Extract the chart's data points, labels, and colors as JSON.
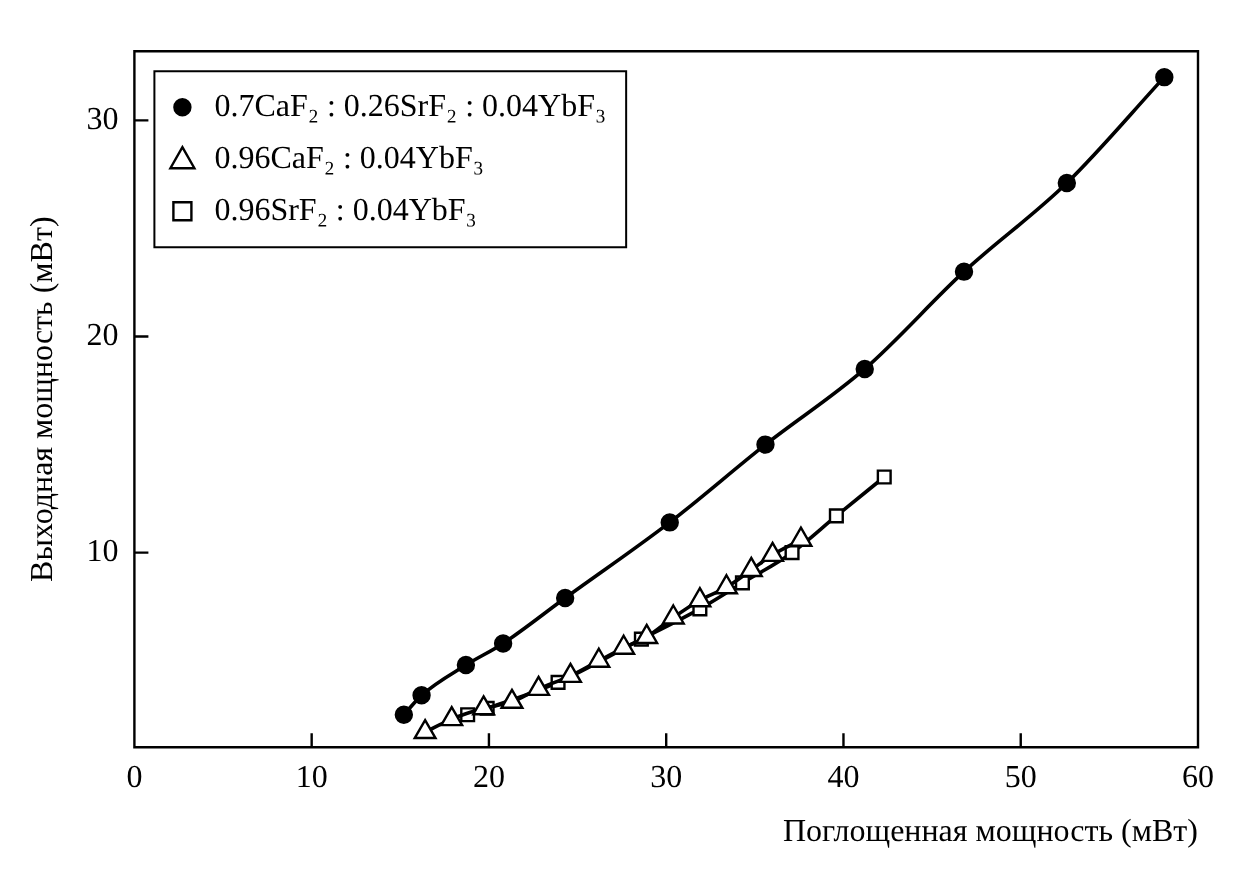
{
  "chart_data": {
    "type": "line",
    "xlabel": "Поглощенная мощность (мВт)",
    "ylabel": "Выходная мощность (мВт)",
    "xlim": [
      0,
      60
    ],
    "xticks": [
      0,
      10,
      20,
      30,
      40,
      50,
      60
    ],
    "ylim": [
      1,
      33.2
    ],
    "yticks": [
      10,
      20,
      30
    ],
    "grid": false,
    "legend": "top left",
    "line_style": "solid",
    "series": [
      {
        "name": "0.7CaF₂ : 0.26SrF₂ : 0.04YbF₃",
        "color": "#000000",
        "marker": "circle",
        "x": [
          15.2,
          16.2,
          18.7,
          20.8,
          24.3,
          30.2,
          35.6,
          41.2,
          46.8,
          52.6,
          58.1
        ],
        "values": [
          2.5,
          3.4,
          4.8,
          5.8,
          7.9,
          11.4,
          15.0,
          18.5,
          23.0,
          27.1,
          32.0
        ]
      },
      {
        "name": "0.96CaF₂ : 0.04YbF₃",
        "color": "#000000",
        "marker": "triangle",
        "x": [
          16.4,
          17.9,
          19.7,
          21.3,
          22.8,
          24.6,
          26.2,
          27.6,
          28.9,
          30.4,
          31.9,
          33.4,
          34.8,
          36.0,
          37.6
        ],
        "values": [
          1.7,
          2.3,
          2.8,
          3.1,
          3.7,
          4.3,
          5.0,
          5.6,
          6.1,
          7.0,
          7.8,
          8.4,
          9.2,
          9.9,
          10.6
        ]
      },
      {
        "name": "0.96SrF₂ : 0.04YbF₃",
        "color": "#000000",
        "marker": "square",
        "x": [
          18.8,
          19.9,
          23.9,
          28.6,
          31.9,
          34.3,
          37.1,
          39.6,
          42.3
        ],
        "values": [
          2.5,
          2.8,
          4.0,
          6.0,
          7.4,
          8.6,
          10.0,
          11.7,
          13.5
        ]
      }
    ]
  }
}
